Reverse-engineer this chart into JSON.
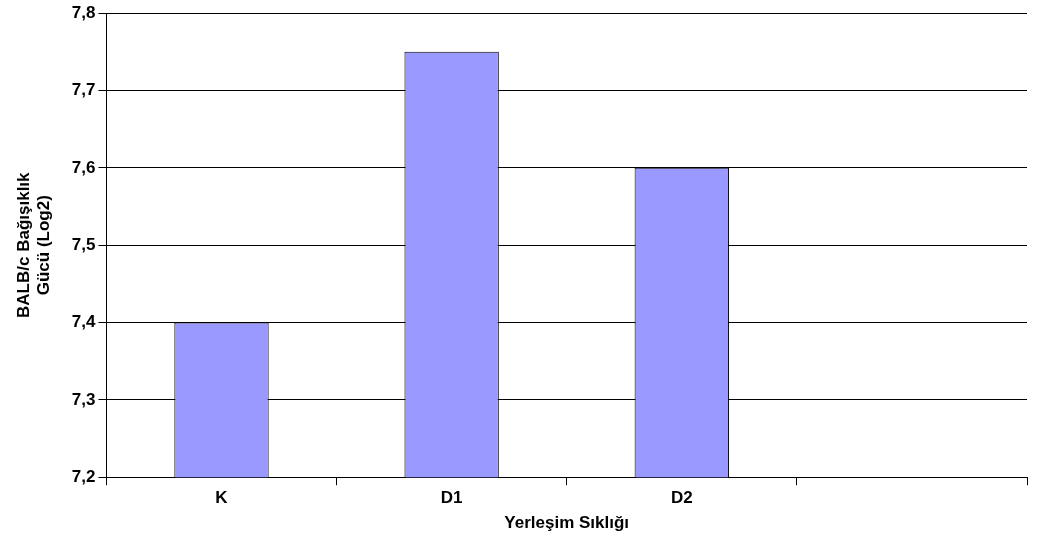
{
  "chart_data": {
    "type": "bar",
    "xlabel": "Yerleşim Sıklığı",
    "ylabel": "BALB/c Bağışıklık\nGücü (Log2)",
    "categories": [
      "K",
      "D1",
      "D2",
      null
    ],
    "values": [
      7.4,
      7.75,
      7.6,
      null
    ],
    "color": "#9999ff",
    "ylim": [
      7.2,
      7.8
    ],
    "yticks": [
      {
        "value": 7.2,
        "label": "7,2"
      },
      {
        "value": 7.3,
        "label": "7,3"
      },
      {
        "value": 7.4,
        "label": "7,4"
      },
      {
        "value": 7.5,
        "label": "7,5"
      },
      {
        "value": 7.6,
        "label": "7,6"
      },
      {
        "value": 7.7,
        "label": "7,7"
      },
      {
        "value": 7.8,
        "label": "7,8"
      }
    ],
    "grid": "y",
    "legend": false
  }
}
